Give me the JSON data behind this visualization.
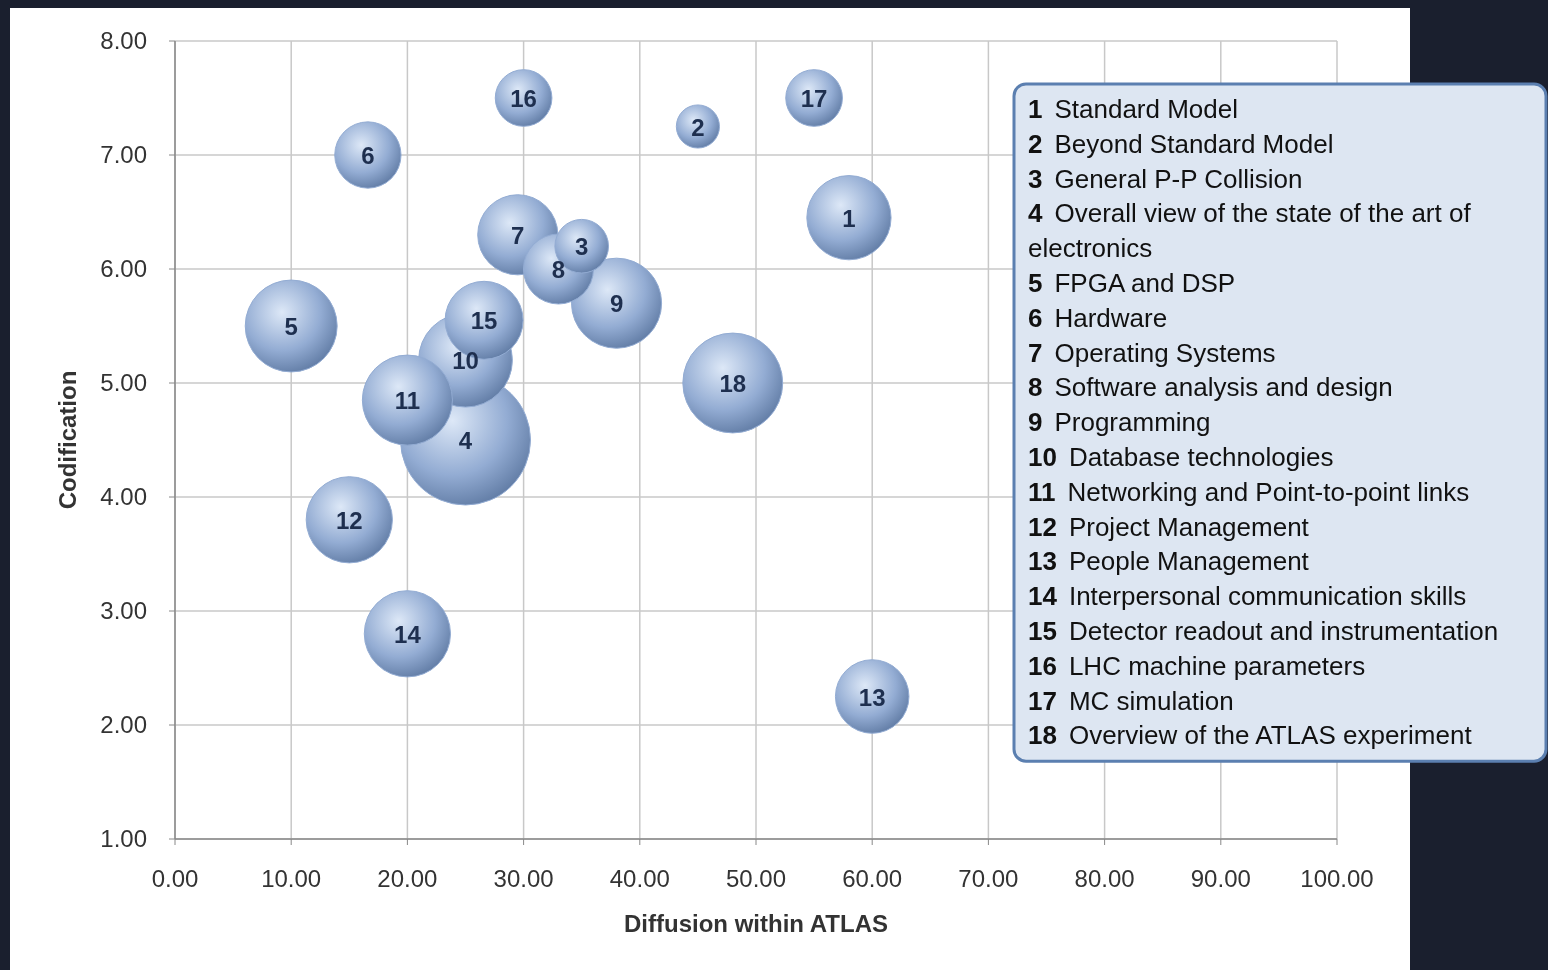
{
  "chart_data": {
    "type": "bubble",
    "xlabel": "Diffusion within ATLAS",
    "ylabel": "Codification",
    "x": [
      58,
      45,
      35,
      25,
      10,
      16.6,
      29.5,
      33,
      38,
      25,
      20,
      15,
      60,
      20,
      26.6,
      30,
      55,
      48
    ],
    "series": [
      {
        "color": "#93acd3",
        "values": [
          6.45,
          7.25,
          6.2,
          4.5,
          5.5,
          7.0,
          6.3,
          6.0,
          5.7,
          5.2,
          4.85,
          3.8,
          2.25,
          2.8,
          5.55,
          7.5,
          7.5,
          5.0
        ],
        "sizes": [
          0.42,
          0.11,
          0.17,
          1,
          0.5,
          0.26,
          0.38,
          0.29,
          0.48,
          0.52,
          0.48,
          0.44,
          0.32,
          0.44,
          0.36,
          0.19,
          0.19,
          0.59
        ]
      }
    ],
    "xlim": [
      0,
      100
    ],
    "ylim": [
      1,
      8
    ],
    "xticks": [
      {
        "value": 0,
        "label": "0.00"
      },
      {
        "value": 10,
        "label": "10.00"
      },
      {
        "value": 20,
        "label": "20.00"
      },
      {
        "value": 30,
        "label": "30.00"
      },
      {
        "value": 40,
        "label": "40.00"
      },
      {
        "value": 50,
        "label": "50.00"
      },
      {
        "value": 60,
        "label": "60.00"
      },
      {
        "value": 70,
        "label": "70.00"
      },
      {
        "value": 80,
        "label": "80.00"
      },
      {
        "value": 90,
        "label": "90.00"
      },
      {
        "value": 100,
        "label": "100.00"
      }
    ],
    "yticks": [
      {
        "value": 1,
        "label": "1.00"
      },
      {
        "value": 2,
        "label": "2.00"
      },
      {
        "value": 3,
        "label": "3.00"
      },
      {
        "value": 4,
        "label": "4.00"
      },
      {
        "value": 5,
        "label": "5.00"
      },
      {
        "value": 6,
        "label": "6.00"
      },
      {
        "value": 7,
        "label": "7.00"
      },
      {
        "value": 8,
        "label": "8.00"
      }
    ],
    "grid": true,
    "annotations": [
      {
        "text": "1",
        "x": 58,
        "y": 6.45
      },
      {
        "text": "2",
        "x": 45,
        "y": 7.25
      },
      {
        "text": "3",
        "x": 35,
        "y": 6.2
      },
      {
        "text": "4",
        "x": 25,
        "y": 4.5
      },
      {
        "text": "5",
        "x": 10,
        "y": 5.5
      },
      {
        "text": "6",
        "x": 16.6,
        "y": 7.0
      },
      {
        "text": "7",
        "x": 29.5,
        "y": 6.3
      },
      {
        "text": "8",
        "x": 33,
        "y": 6.0
      },
      {
        "text": "9",
        "x": 38,
        "y": 5.7
      },
      {
        "text": "10",
        "x": 25,
        "y": 5.2
      },
      {
        "text": "11",
        "x": 20,
        "y": 4.85
      },
      {
        "text": "12",
        "x": 15,
        "y": 3.8
      },
      {
        "text": "13",
        "x": 60,
        "y": 2.25
      },
      {
        "text": "14",
        "x": 20,
        "y": 2.8
      },
      {
        "text": "15",
        "x": 26.6,
        "y": 5.55
      },
      {
        "text": "16",
        "x": 30,
        "y": 7.5
      },
      {
        "text": "17",
        "x": 55,
        "y": 7.5
      },
      {
        "text": "18",
        "x": 48,
        "y": 5.0
      },
      "1 Standard Model",
      "2 Beyond Standard Model",
      "3 General P-P Collision",
      "4 Overall view of the state of the art of electronics",
      "5 FPGA and DSP",
      "6 Hardware",
      "7 Operating Systems",
      "8 Software analysis and design",
      "9 Programming",
      "10 Database technologies",
      "11 Networking and Point-to-point links",
      "12 Project Management",
      "13 People Management",
      "14 Interpersonal communication skills",
      "15 Detector readout and instrumentation",
      "16 LHC machine parameters",
      "17 MC simulation",
      "18 Overview of the ATLAS experiment"
    ]
  }
}
